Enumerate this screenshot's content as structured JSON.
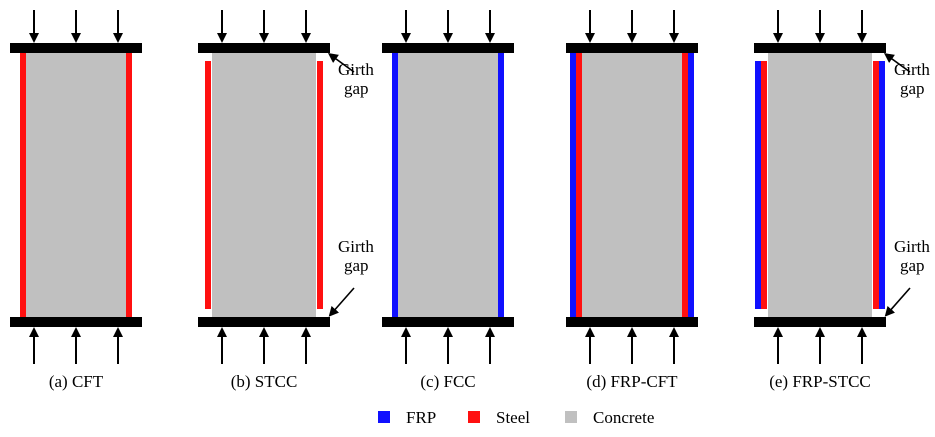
{
  "colors": {
    "frp": "#1010ff",
    "steel": "#ff1010",
    "concrete": "#c0c0c0",
    "plate": "#000000",
    "arrow": "#000000"
  },
  "panels": [
    {
      "caption": "(a) CFT",
      "layers": [
        "steel"
      ],
      "girth_gap": false
    },
    {
      "caption": "(b) STCC",
      "layers": [
        "steel"
      ],
      "girth_gap": true,
      "gap_label_line1": "Girth",
      "gap_label_line2": "gap"
    },
    {
      "caption": "(c) FCC",
      "layers": [
        "frp"
      ],
      "girth_gap": false
    },
    {
      "caption": "(d) FRP-CFT",
      "layers": [
        "frp",
        "steel"
      ],
      "girth_gap": false
    },
    {
      "caption": "(e) FRP-STCC",
      "layers": [
        "frp",
        "steel"
      ],
      "girth_gap": true,
      "gap_label_line1": "Girth",
      "gap_label_line2": "gap"
    }
  ],
  "legend": [
    {
      "label": "FRP",
      "color_key": "frp"
    },
    {
      "label": "Steel",
      "color_key": "steel"
    },
    {
      "label": "Concrete",
      "color_key": "concrete"
    }
  ]
}
